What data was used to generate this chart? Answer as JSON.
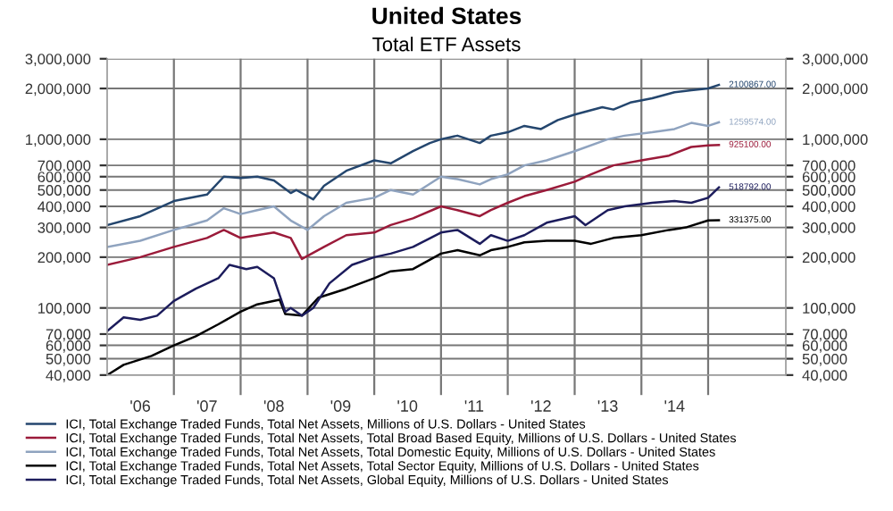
{
  "chart_data": {
    "type": "line",
    "title": "United States",
    "subtitle": "Total ETF Assets",
    "log": "y",
    "grid": true,
    "legend": "bottom",
    "line_style": "solid",
    "marker": "none",
    "xlim": [
      "2006-01",
      "2016-03"
    ],
    "xticks": [
      {
        "value": "2006-07",
        "label": "'06"
      },
      {
        "value": "2007-01",
        "label": null
      },
      {
        "value": "2007-07",
        "label": "'07"
      },
      {
        "value": "2008-01",
        "label": null
      },
      {
        "value": "2008-07",
        "label": "'08"
      },
      {
        "value": "2009-01",
        "label": null
      },
      {
        "value": "2009-07",
        "label": "'09"
      },
      {
        "value": "2010-01",
        "label": null
      },
      {
        "value": "2010-07",
        "label": "'10"
      },
      {
        "value": "2011-01",
        "label": null
      },
      {
        "value": "2011-07",
        "label": "'11"
      },
      {
        "value": "2012-01",
        "label": null
      },
      {
        "value": "2012-07",
        "label": "'12"
      },
      {
        "value": "2013-01",
        "label": null
      },
      {
        "value": "2013-07",
        "label": "'13"
      },
      {
        "value": "2014-01",
        "label": null
      },
      {
        "value": "2014-07",
        "label": "'14"
      },
      {
        "value": "2015-01",
        "label": null
      }
    ],
    "ylim": [
      40000,
      3000000
    ],
    "yticks": [
      {
        "value": 40000,
        "label": "40,000"
      },
      {
        "value": 50000,
        "label": "50,000"
      },
      {
        "value": 60000,
        "label": "60,000"
      },
      {
        "value": 70000,
        "label": "70,000"
      },
      {
        "value": 100000,
        "label": "100,000"
      },
      {
        "value": 200000,
        "label": "200,000"
      },
      {
        "value": 300000,
        "label": "300,000"
      },
      {
        "value": 400000,
        "label": "400,000"
      },
      {
        "value": 500000,
        "label": "500,000"
      },
      {
        "value": 600000,
        "label": "600,000"
      },
      {
        "value": 700000,
        "label": "700,000"
      },
      {
        "value": 1000000,
        "label": "1,000,000"
      },
      {
        "value": 2000000,
        "label": "2,000,000"
      },
      {
        "value": 3000000,
        "label": "3,000,000"
      }
    ],
    "series": [
      {
        "name": "ICI, Total Exchange Traded Funds, Total Net Assets, Millions of U.S. Dollars - United States",
        "color": "#24466e",
        "x": [
          "2006-01",
          "2006-07",
          "2007-01",
          "2007-07",
          "2007-10",
          "2008-01",
          "2008-04",
          "2008-07",
          "2008-10",
          "2008-11",
          "2009-02",
          "2009-04",
          "2009-08",
          "2010-01",
          "2010-04",
          "2010-08",
          "2010-11",
          "2011-01",
          "2011-04",
          "2011-08",
          "2011-10",
          "2012-01",
          "2012-04",
          "2012-07",
          "2012-10",
          "2013-01",
          "2013-06",
          "2013-08",
          "2013-11",
          "2014-03",
          "2014-07",
          "2014-10",
          "2015-01",
          "2015-03"
        ],
        "values": [
          310000,
          350000,
          430000,
          470000,
          600000,
          590000,
          600000,
          570000,
          480000,
          500000,
          440000,
          530000,
          650000,
          750000,
          720000,
          850000,
          950000,
          1000000,
          1050000,
          950000,
          1050000,
          1100000,
          1200000,
          1150000,
          1300000,
          1400000,
          1550000,
          1500000,
          1650000,
          1750000,
          1900000,
          1950000,
          2000000,
          2100867
        ],
        "value_labels": [
          null,
          null,
          null,
          null,
          null,
          null,
          null,
          null,
          null,
          null,
          null,
          null,
          null,
          null,
          null,
          null,
          null,
          null,
          null,
          null,
          null,
          null,
          null,
          null,
          null,
          null,
          null,
          null,
          null,
          null,
          null,
          null,
          null,
          "2100867.00"
        ]
      },
      {
        "name": "ICI, Total Exchange Traded Funds, Total Net Assets, Total Broad Based Equity, Millions of U.S. Dollars - United States",
        "color": "#9b1b3a",
        "x": [
          "2006-01",
          "2006-07",
          "2007-01",
          "2007-07",
          "2007-10",
          "2008-01",
          "2008-04",
          "2008-07",
          "2008-10",
          "2008-12",
          "2009-04",
          "2009-08",
          "2010-01",
          "2010-04",
          "2010-08",
          "2011-01",
          "2011-04",
          "2011-08",
          "2011-10",
          "2012-01",
          "2012-04",
          "2012-08",
          "2013-01",
          "2013-04",
          "2013-08",
          "2014-01",
          "2014-06",
          "2014-10",
          "2015-01",
          "2015-03"
        ],
        "values": [
          180000,
          200000,
          230000,
          260000,
          290000,
          260000,
          270000,
          280000,
          260000,
          195000,
          230000,
          270000,
          280000,
          310000,
          340000,
          400000,
          380000,
          350000,
          380000,
          420000,
          460000,
          500000,
          560000,
          620000,
          700000,
          750000,
          800000,
          900000,
          920000,
          925100
        ],
        "value_labels": [
          null,
          null,
          null,
          null,
          null,
          null,
          null,
          null,
          null,
          null,
          null,
          null,
          null,
          null,
          null,
          null,
          null,
          null,
          null,
          null,
          null,
          null,
          null,
          null,
          null,
          null,
          null,
          null,
          null,
          "925100.00"
        ]
      },
      {
        "name": "ICI, Total Exchange Traded Funds, Total Net Assets, Total Domestic Equity, Millions of U.S. Dollars - United States",
        "color": "#8fa3bf",
        "x": [
          "2006-01",
          "2006-07",
          "2007-01",
          "2007-07",
          "2007-10",
          "2008-01",
          "2008-04",
          "2008-07",
          "2008-10",
          "2009-01",
          "2009-04",
          "2009-08",
          "2010-01",
          "2010-04",
          "2010-08",
          "2011-01",
          "2011-04",
          "2011-08",
          "2011-10",
          "2012-01",
          "2012-04",
          "2012-08",
          "2013-01",
          "2013-07",
          "2013-10",
          "2014-03",
          "2014-07",
          "2014-10",
          "2015-01",
          "2015-03"
        ],
        "values": [
          230000,
          250000,
          290000,
          330000,
          390000,
          360000,
          380000,
          400000,
          330000,
          290000,
          350000,
          420000,
          450000,
          500000,
          470000,
          600000,
          580000,
          540000,
          580000,
          620000,
          700000,
          750000,
          850000,
          1000000,
          1050000,
          1100000,
          1150000,
          1250000,
          1200000,
          1259574
        ],
        "value_labels": [
          null,
          null,
          null,
          null,
          null,
          null,
          null,
          null,
          null,
          null,
          null,
          null,
          null,
          null,
          null,
          null,
          null,
          null,
          null,
          null,
          null,
          null,
          null,
          null,
          null,
          null,
          null,
          null,
          null,
          "1259574.00"
        ]
      },
      {
        "name": "ICI, Total Exchange Traded Funds, Total Net Assets, Total Sector Equity, Millions of U.S. Dollars - United States",
        "color": "#000000",
        "x": [
          "2006-01",
          "2006-04",
          "2006-09",
          "2007-01",
          "2007-05",
          "2007-09",
          "2008-01",
          "2008-04",
          "2008-08",
          "2008-09",
          "2008-12",
          "2009-03",
          "2009-08",
          "2010-01",
          "2010-04",
          "2010-08",
          "2011-01",
          "2011-04",
          "2011-08",
          "2011-10",
          "2012-01",
          "2012-04",
          "2012-08",
          "2013-01",
          "2013-04",
          "2013-08",
          "2014-01",
          "2014-06",
          "2014-09",
          "2015-01",
          "2015-03"
        ],
        "values": [
          40000,
          46000,
          52000,
          60000,
          68000,
          80000,
          95000,
          105000,
          112000,
          92000,
          90000,
          115000,
          130000,
          150000,
          165000,
          170000,
          210000,
          220000,
          205000,
          220000,
          230000,
          245000,
          250000,
          250000,
          240000,
          260000,
          270000,
          290000,
          300000,
          330000,
          331375
        ],
        "value_labels": [
          null,
          null,
          null,
          null,
          null,
          null,
          null,
          null,
          null,
          null,
          null,
          null,
          null,
          null,
          null,
          null,
          null,
          null,
          null,
          null,
          null,
          null,
          null,
          null,
          null,
          null,
          null,
          null,
          null,
          null,
          "331375.00"
        ]
      },
      {
        "name": "ICI, Total Exchange Traded Funds, Total Net Assets, Global Equity, Millions of U.S. Dollars - United States",
        "color": "#1c1c5c",
        "x": [
          "2006-01",
          "2006-04",
          "2006-07",
          "2006-10",
          "2007-01",
          "2007-05",
          "2007-09",
          "2007-11",
          "2008-02",
          "2008-04",
          "2008-07",
          "2008-09",
          "2008-10",
          "2008-12",
          "2009-02",
          "2009-05",
          "2009-09",
          "2010-01",
          "2010-04",
          "2010-08",
          "2011-01",
          "2011-04",
          "2011-08",
          "2011-10",
          "2012-01",
          "2012-04",
          "2012-08",
          "2013-01",
          "2013-03",
          "2013-07",
          "2013-10",
          "2014-03",
          "2014-07",
          "2014-10",
          "2015-01",
          "2015-03"
        ],
        "values": [
          73000,
          88000,
          85000,
          90000,
          110000,
          130000,
          150000,
          180000,
          170000,
          175000,
          150000,
          95000,
          100000,
          90000,
          100000,
          140000,
          180000,
          200000,
          210000,
          230000,
          280000,
          290000,
          240000,
          270000,
          250000,
          270000,
          320000,
          350000,
          310000,
          380000,
          400000,
          420000,
          430000,
          420000,
          450000,
          518792
        ],
        "value_labels": [
          null,
          null,
          null,
          null,
          null,
          null,
          null,
          null,
          null,
          null,
          null,
          null,
          null,
          null,
          null,
          null,
          null,
          null,
          null,
          null,
          null,
          null,
          null,
          null,
          null,
          null,
          null,
          null,
          null,
          null,
          null,
          null,
          null,
          null,
          null,
          "518792.00"
        ]
      }
    ]
  }
}
